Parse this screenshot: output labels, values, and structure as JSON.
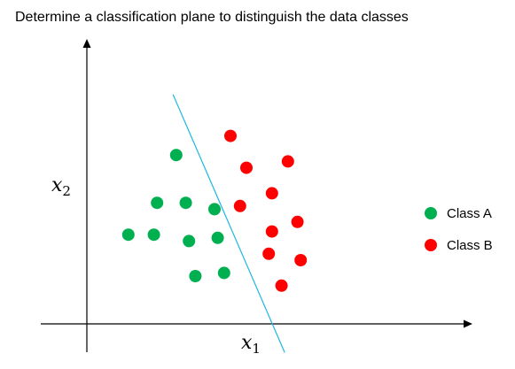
{
  "chart_data": {
    "type": "scatter",
    "title": "Determine a classification plane to distinguish the data classes",
    "xlabel": {
      "base": "x",
      "sub": "1"
    },
    "ylabel": {
      "base": "x",
      "sub": "2"
    },
    "xlim": [
      0,
      12
    ],
    "ylim": [
      0,
      8.5
    ],
    "grid": false,
    "legend_position": "right",
    "series": [
      {
        "name": "Class A",
        "color": "#00b050",
        "points": [
          [
            2.8,
            5.3
          ],
          [
            2.2,
            3.8
          ],
          [
            3.1,
            3.8
          ],
          [
            4.0,
            3.6
          ],
          [
            1.3,
            2.8
          ],
          [
            2.1,
            2.8
          ],
          [
            3.2,
            2.6
          ],
          [
            4.1,
            2.7
          ],
          [
            3.4,
            1.5
          ],
          [
            4.3,
            1.6
          ]
        ]
      },
      {
        "name": "Class B",
        "color": "#ff0000",
        "points": [
          [
            4.5,
            5.9
          ],
          [
            5.0,
            4.9
          ],
          [
            6.3,
            5.1
          ],
          [
            4.8,
            3.7
          ],
          [
            5.8,
            4.1
          ],
          [
            6.6,
            3.2
          ],
          [
            5.8,
            2.9
          ],
          [
            5.7,
            2.2
          ],
          [
            6.7,
            2.0
          ],
          [
            6.1,
            1.2
          ]
        ]
      }
    ],
    "separator": {
      "color": "#1fb8e0",
      "from": [
        2.7,
        7.2
      ],
      "to": [
        6.2,
        -0.9
      ]
    }
  }
}
